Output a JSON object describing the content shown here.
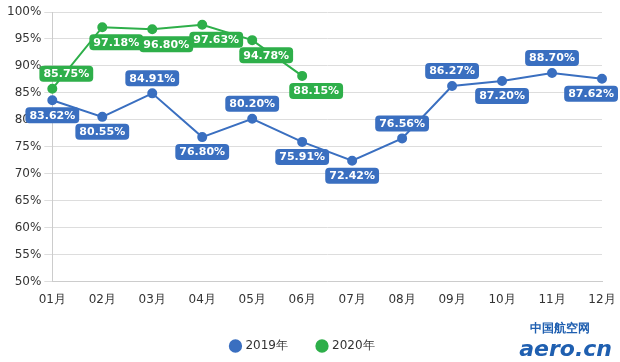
{
  "chart_data": {
    "type": "line",
    "categories": [
      "01月",
      "02月",
      "03月",
      "04月",
      "05月",
      "06月",
      "07月",
      "08月",
      "09月",
      "10月",
      "11月",
      "12月"
    ],
    "series": [
      {
        "name": "2019年",
        "color": "#3a6fc0",
        "marker": "circle",
        "values": [
          83.62,
          80.55,
          84.91,
          76.8,
          80.2,
          75.91,
          72.42,
          76.56,
          86.27,
          87.2,
          88.7,
          87.62
        ],
        "value_labels": [
          "83.62%",
          "80.55%",
          "84.91%",
          "76.80%",
          "80.20%",
          "75.91%",
          "72.42%",
          "76.56%",
          "86.27%",
          "87.20%",
          "88.70%",
          "87.62%"
        ]
      },
      {
        "name": "2020年",
        "color": "#2eaf4a",
        "marker": "circle",
        "values": [
          85.75,
          97.18,
          96.8,
          97.63,
          94.78,
          88.15,
          null,
          null,
          null,
          null,
          null,
          null
        ],
        "value_labels": [
          "85.75%",
          "97.18%",
          "96.80%",
          "97.63%",
          "94.78%",
          "88.15%",
          null,
          null,
          null,
          null,
          null,
          null
        ]
      }
    ],
    "ylim": [
      50,
      100
    ],
    "yticks": [
      {
        "value": 50,
        "label": "50%"
      },
      {
        "value": 55,
        "label": "55%"
      },
      {
        "value": 60,
        "label": "60%"
      },
      {
        "value": 65,
        "label": "65%"
      },
      {
        "value": 70,
        "label": "70%"
      },
      {
        "value": 75,
        "label": "75%"
      },
      {
        "value": 80,
        "label": "80%"
      },
      {
        "value": 85,
        "label": "85%"
      },
      {
        "value": 90,
        "label": "90%"
      },
      {
        "value": 95,
        "label": "95%"
      },
      {
        "value": 100,
        "label": "100%"
      }
    ],
    "grid": true,
    "legend": "bottom",
    "data_labels": true,
    "annotations": [
      "中国航空网",
      "aero.cn"
    ]
  }
}
